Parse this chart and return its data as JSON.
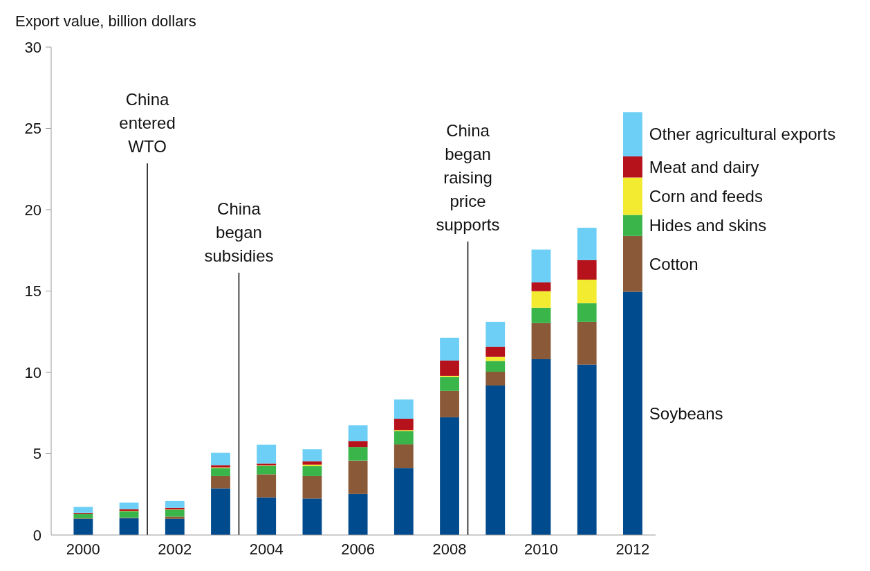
{
  "chart_data": {
    "type": "bar",
    "stacked": true,
    "ylabel": "Export value, billion dollars",
    "x": [
      2000,
      2001,
      2002,
      2003,
      2004,
      2005,
      2006,
      2007,
      2008,
      2009,
      2010,
      2011,
      2012
    ],
    "xlim": [
      1999.3,
      2012.5
    ],
    "xticks": [
      2000,
      2002,
      2004,
      2006,
      2008,
      2010,
      2012
    ],
    "ylim": [
      0,
      30
    ],
    "yticks": [
      0,
      5,
      10,
      15,
      20,
      25,
      30
    ],
    "grid": false,
    "legend": "right",
    "series": [
      {
        "name": "Soybeans",
        "color": "#004b8d",
        "values": [
          0.99,
          1.04,
          0.99,
          2.87,
          2.31,
          2.24,
          2.52,
          4.12,
          7.24,
          9.19,
          10.81,
          10.48,
          14.96
        ]
      },
      {
        "name": "Cotton",
        "color": "#8a5a38",
        "values": [
          0.04,
          0.03,
          0.14,
          0.75,
          1.42,
          1.38,
          2.05,
          1.45,
          1.62,
          0.85,
          2.22,
          2.63,
          3.43
        ]
      },
      {
        "name": "Hides and skins",
        "color": "#39b54a",
        "values": [
          0.27,
          0.39,
          0.42,
          0.5,
          0.53,
          0.63,
          0.83,
          0.81,
          0.85,
          0.66,
          0.94,
          1.14,
          1.29
        ]
      },
      {
        "name": "Corn and feeds",
        "color": "#f2eb30",
        "values": [
          null,
          0.02,
          0.02,
          0.03,
          0.02,
          0.07,
          null,
          0.07,
          0.08,
          0.25,
          1.02,
          1.45,
          2.3
        ]
      },
      {
        "name": "Meat and dairy",
        "color": "#b5121b",
        "values": [
          0.07,
          0.11,
          0.1,
          0.14,
          0.12,
          0.22,
          0.38,
          0.7,
          0.94,
          0.63,
          0.54,
          1.2,
          1.3
        ]
      },
      {
        "name": "Other agricultural exports",
        "color": "#6dcff6",
        "values": [
          0.36,
          0.4,
          0.42,
          0.77,
          1.15,
          0.73,
          0.97,
          1.18,
          1.4,
          1.53,
          2.02,
          1.99,
          2.71
        ]
      }
    ],
    "ref_lines": [
      {
        "axis": "x",
        "value": 2001.4,
        "label": "China entered WTO",
        "color": "#000000"
      },
      {
        "axis": "x",
        "value": 2003.4,
        "label": "China began subsidies",
        "color": "#000000"
      },
      {
        "axis": "x",
        "value": 2008.4,
        "label": "China began raising price supports",
        "color": "#000000"
      }
    ]
  }
}
